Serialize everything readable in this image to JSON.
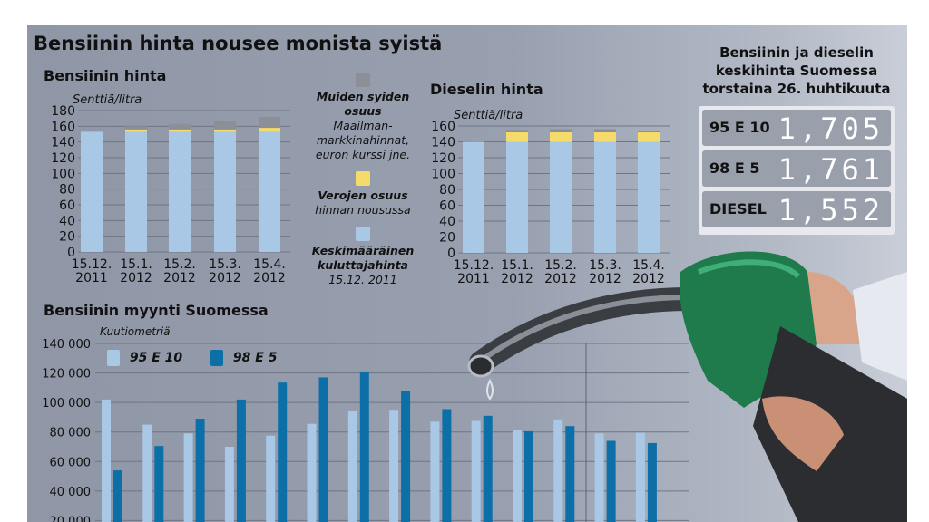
{
  "title": "Bensiinin hinta nousee monista syistä",
  "legend": {
    "other_title": "Muiden syiden osuus",
    "other_desc": "Maailman-markkinahinnat, euron kurssi jne.",
    "tax_title": "Verojen osuus",
    "tax_desc": "hinnan nousussa",
    "base_title": "Keskimääräinen kuluttajahinta",
    "base_desc": "15.12. 2011",
    "colors": {
      "base": "#a9c8e6",
      "tax": "#f5dc6a",
      "other": "#8c8f96"
    }
  },
  "price_box": {
    "title": "Bensiinin ja dieselin keskihinta Suomessa torstaina 26. huhtikuuta",
    "rows": [
      {
        "label": "95 E 10",
        "value": "1,705"
      },
      {
        "label": "98 E 5",
        "value": "1,761"
      },
      {
        "label": "DIESEL",
        "value": "1,552"
      }
    ]
  },
  "chart_data": [
    {
      "type": "bar",
      "stacked": true,
      "title": "Bensiinin hinta",
      "ylabel": "Senttiä/litra",
      "ylim": [
        0,
        180
      ],
      "yticks": [
        0,
        20,
        40,
        60,
        80,
        100,
        120,
        140,
        160,
        180
      ],
      "categories": [
        [
          "15.12.",
          "2011"
        ],
        [
          "15.1.",
          "2012"
        ],
        [
          "15.2.",
          "2012"
        ],
        [
          "15.3.",
          "2012"
        ],
        [
          "15.4.",
          "2012"
        ]
      ],
      "series": [
        {
          "name": "Keskimääräinen kuluttajahinta",
          "values": [
            153,
            153,
            153,
            153,
            153
          ]
        },
        {
          "name": "Verojen osuus",
          "values": [
            0,
            3,
            3,
            3,
            5
          ]
        },
        {
          "name": "Muiden syiden osuus",
          "values": [
            0,
            4,
            7,
            11,
            14
          ]
        }
      ]
    },
    {
      "type": "bar",
      "stacked": true,
      "title": "Dieselin hinta",
      "ylabel": "Senttiä/litra",
      "ylim": [
        0,
        160
      ],
      "yticks": [
        0,
        20,
        40,
        60,
        80,
        100,
        120,
        140,
        160
      ],
      "categories": [
        [
          "15.12.",
          "2011"
        ],
        [
          "15.1.",
          "2012"
        ],
        [
          "15.2.",
          "2012"
        ],
        [
          "15.3.",
          "2012"
        ],
        [
          "15.4.",
          "2012"
        ]
      ],
      "series": [
        {
          "name": "Keskimääräinen kuluttajahinta",
          "values": [
            140,
            140,
            140,
            140,
            140
          ]
        },
        {
          "name": "Verojen osuus",
          "values": [
            0,
            12,
            12,
            12,
            12
          ]
        },
        {
          "name": "Muiden syiden osuus",
          "values": [
            0,
            3,
            4,
            4,
            2
          ]
        }
      ]
    },
    {
      "type": "bar",
      "title": "Bensiinin myynti Suomessa",
      "ylabel": "Kuutiometriä",
      "ylim": [
        0,
        140000
      ],
      "yticks": [
        "20 000",
        "40 000",
        "60 000",
        "80 000",
        "100 000",
        "120 000",
        "140 000"
      ],
      "series": [
        {
          "name": "95 E 10",
          "color": "#a9c8e6",
          "values": [
            102000,
            85000,
            79000,
            70000,
            77500,
            85500,
            94500,
            95000,
            87000,
            87500,
            81500,
            88500,
            79000,
            79500
          ]
        },
        {
          "name": "98 E 5",
          "color": "#0d6fa8",
          "values": [
            54000,
            70500,
            89000,
            102000,
            113500,
            117000,
            121000,
            108000,
            95500,
            91000,
            80500,
            84000,
            74000,
            72500
          ]
        }
      ]
    }
  ]
}
